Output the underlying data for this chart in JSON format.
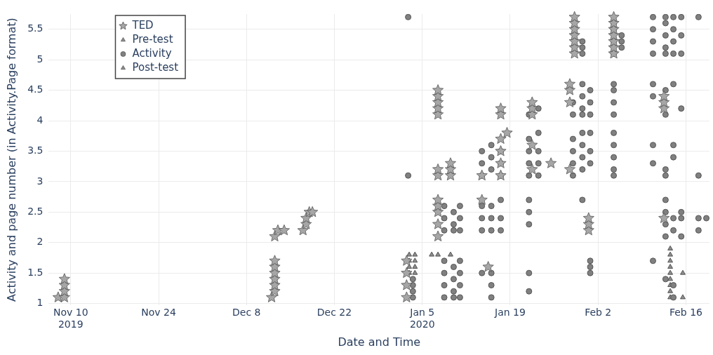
{
  "chart_data": {
    "type": "scatter",
    "xlabel": "Date and Time",
    "ylabel": "Activity and page number (in Activity.Page format)",
    "xlim": [
      "2019-11-06T12:00",
      "2020-02-19T18:00"
    ],
    "ylim": [
      0.97,
      5.75
    ],
    "xticks": [
      {
        "value": "2019-11-10",
        "label": "Nov 10\n2019"
      },
      {
        "value": "2019-11-24",
        "label": "Nov 24"
      },
      {
        "value": "2019-12-08",
        "label": "Dec 8"
      },
      {
        "value": "2019-12-22",
        "label": "Dec 22"
      },
      {
        "value": "2020-01-05",
        "label": "Jan 5\n2020"
      },
      {
        "value": "2020-01-19",
        "label": "Jan 19"
      },
      {
        "value": "2020-02-02",
        "label": "Feb 2"
      },
      {
        "value": "2020-02-16",
        "label": "Feb 16"
      }
    ],
    "yticks": [
      1,
      1.5,
      2,
      2.5,
      3,
      3.5,
      4,
      4.5,
      5,
      5.5
    ],
    "grid": true,
    "legend": "top left",
    "series": [
      {
        "name": "TED",
        "color": "#a6a6a6",
        "marker": "star",
        "x": [
          "2019-11-08T00:00",
          "2019-11-09T00:00",
          "2019-11-09T00:00",
          "2019-11-09T00:00",
          "2019-11-09T00:00",
          "2019-12-12T00:00",
          "2019-12-12T12:00",
          "2019-12-12T12:00",
          "2019-12-12T12:00",
          "2019-12-12T12:00",
          "2019-12-12T12:00",
          "2019-12-12T12:00",
          "2019-12-12T12:00",
          "2019-12-13T00:00",
          "2019-12-14T00:00",
          "2019-12-17T00:00",
          "2019-12-17T12:00",
          "2019-12-17T12:00",
          "2019-12-18T00:00",
          "2019-12-18T12:00",
          "2020-01-02T12:00",
          "2020-01-02T12:00",
          "2020-01-02T12:00",
          "2020-01-02T12:00",
          "2020-01-07T12:00",
          "2020-01-07T12:00",
          "2020-01-07T12:00",
          "2020-01-07T12:00",
          "2020-01-07T12:00",
          "2020-01-07T12:00",
          "2020-01-07T12:00",
          "2020-01-07T12:00",
          "2020-01-07T12:00",
          "2020-01-07T12:00",
          "2020-01-07T12:00",
          "2020-01-07T12:00",
          "2020-01-09T12:00",
          "2020-01-09T12:00",
          "2020-01-09T12:00",
          "2020-01-14T12:00",
          "2020-01-14T12:00",
          "2020-01-15T12:00",
          "2020-01-17T12:00",
          "2020-01-17T12:00",
          "2020-01-17T12:00",
          "2020-01-17T12:00",
          "2020-01-17T12:00",
          "2020-01-17T12:00",
          "2020-01-18T12:00",
          "2020-01-22T12:00",
          "2020-01-22T12:00",
          "2020-01-22T12:00",
          "2020-01-22T12:00",
          "2020-01-22T12:00",
          "2020-01-25T12:00",
          "2020-01-28T12:00",
          "2020-01-28T12:00",
          "2020-01-28T12:00",
          "2020-01-28T12:00",
          "2020-01-29T06:00",
          "2020-01-29T06:00",
          "2020-01-29T06:00",
          "2020-01-29T06:00",
          "2020-01-29T06:00",
          "2020-01-29T06:00",
          "2020-01-29T06:00",
          "2020-01-31T12:00",
          "2020-01-31T12:00",
          "2020-01-31T12:00",
          "2020-02-04T12:00",
          "2020-02-04T12:00",
          "2020-02-04T12:00",
          "2020-02-04T12:00",
          "2020-02-04T12:00",
          "2020-02-04T12:00",
          "2020-02-04T12:00",
          "2020-02-12T12:00",
          "2020-02-12T12:00",
          "2020-02-12T12:00",
          "2020-02-12T12:00"
        ],
        "values": [
          1.1,
          1.1,
          1.2,
          1.3,
          1.4,
          1.1,
          1.2,
          1.3,
          1.4,
          1.5,
          1.6,
          1.7,
          2.1,
          2.2,
          2.2,
          2.2,
          2.3,
          2.4,
          2.5,
          2.5,
          1.1,
          1.3,
          1.5,
          1.7,
          4.1,
          4.2,
          4.3,
          4.4,
          4.5,
          3.1,
          3.2,
          2.1,
          2.3,
          2.5,
          2.6,
          2.7,
          3.1,
          3.2,
          3.3,
          2.7,
          3.1,
          1.6,
          3.1,
          3.3,
          3.5,
          3.7,
          4.1,
          4.2,
          3.8,
          4.1,
          4.2,
          4.3,
          3.2,
          3.6,
          3.3,
          4.3,
          4.5,
          4.6,
          3.2,
          5.1,
          5.2,
          5.3,
          5.4,
          5.5,
          5.6,
          5.7,
          2.2,
          2.3,
          2.4,
          5.1,
          5.2,
          5.3,
          5.4,
          5.5,
          5.6,
          5.7,
          4.2,
          4.3,
          4.4,
          2.4
        ]
      },
      {
        "name": "Pre-test",
        "color": "#8c8c8c",
        "marker": "triangle",
        "x": [
          "2020-01-02T22:00",
          "2020-01-02T22:00",
          "2020-01-02T22:00",
          "2020-01-02T22:00",
          "2020-01-03T20:00",
          "2020-01-03T20:00",
          "2020-01-03T20:00",
          "2020-01-03T20:00",
          "2020-01-06T12:00",
          "2020-01-07T12:00",
          "2020-01-09T12:00"
        ],
        "values": [
          1.5,
          1.6,
          1.7,
          1.8,
          1.5,
          1.6,
          1.7,
          1.8,
          1.8,
          1.8,
          1.8
        ]
      },
      {
        "name": "Activity",
        "color": "#808080",
        "marker": "circle",
        "x": [
          "2020-01-02T18:00",
          "2020-01-02T18:00",
          "2020-01-03T12:00",
          "2020-01-03T12:00",
          "2020-01-03T12:00",
          "2020-01-03T12:00",
          "2020-01-08T12:00",
          "2020-01-08T12:00",
          "2020-01-08T12:00",
          "2020-01-08T12:00",
          "2020-01-08T12:00",
          "2020-01-08T12:00",
          "2020-01-08T12:00",
          "2020-01-10T00:00",
          "2020-01-10T00:00",
          "2020-01-10T00:00",
          "2020-01-10T00:00",
          "2020-01-10T00:00",
          "2020-01-10T00:00",
          "2020-01-10T00:00",
          "2020-01-11T00:00",
          "2020-01-11T00:00",
          "2020-01-11T00:00",
          "2020-01-11T00:00",
          "2020-01-11T00:00",
          "2020-01-11T00:00",
          "2020-01-11T00:00",
          "2020-01-14T12:00",
          "2020-01-14T12:00",
          "2020-01-14T12:00",
          "2020-01-14T12:00",
          "2020-01-14T12:00",
          "2020-01-14T12:00",
          "2020-01-14T12:00",
          "2020-01-16T00:00",
          "2020-01-16T00:00",
          "2020-01-16T00:00",
          "2020-01-16T00:00",
          "2020-01-16T00:00",
          "2020-01-16T00:00",
          "2020-01-16T00:00",
          "2020-01-16T00:00",
          "2020-01-16T00:00",
          "2020-01-17T12:00",
          "2020-01-17T12:00",
          "2020-01-17T12:00",
          "2020-01-17T12:00",
          "2020-01-17T12:00",
          "2020-01-17T12:00",
          "2020-01-22T00:00",
          "2020-01-22T00:00",
          "2020-01-22T00:00",
          "2020-01-22T00:00",
          "2020-01-22T00:00",
          "2020-01-22T00:00",
          "2020-01-22T00:00",
          "2020-01-22T00:00",
          "2020-01-22T00:00",
          "2020-01-22T00:00",
          "2020-01-23T12:00",
          "2020-01-23T12:00",
          "2020-01-23T12:00",
          "2020-01-23T12:00",
          "2020-01-23T12:00",
          "2020-01-29T00:00",
          "2020-01-29T00:00",
          "2020-01-29T00:00",
          "2020-01-29T00:00",
          "2020-01-29T00:00",
          "2020-01-29T00:00",
          "2020-01-30T12:00",
          "2020-01-30T12:00",
          "2020-01-30T12:00",
          "2020-01-30T12:00",
          "2020-01-30T12:00",
          "2020-01-30T12:00",
          "2020-01-30T12:00",
          "2020-01-30T12:00",
          "2020-01-30T12:00",
          "2020-01-30T12:00",
          "2020-01-30T12:00",
          "2020-01-30T12:00",
          "2020-01-31T18:00",
          "2020-01-31T18:00",
          "2020-01-31T18:00",
          "2020-01-31T18:00",
          "2020-01-31T18:00",
          "2020-01-31T18:00",
          "2020-01-31T18:00",
          "2020-01-31T18:00",
          "2020-01-31T18:00",
          "2020-02-04T12:00",
          "2020-02-04T12:00",
          "2020-02-04T12:00",
          "2020-02-04T12:00",
          "2020-02-04T12:00",
          "2020-02-04T12:00",
          "2020-02-04T12:00",
          "2020-02-04T12:00",
          "2020-02-04T12:00",
          "2020-02-04T12:00",
          "2020-02-04T12:00",
          "2020-02-04T12:00",
          "2020-02-04T12:00",
          "2020-02-05T18:00",
          "2020-02-05T18:00",
          "2020-02-05T18:00",
          "2020-02-10T18:00",
          "2020-02-10T18:00",
          "2020-02-10T18:00",
          "2020-02-10T18:00",
          "2020-02-10T18:00",
          "2020-02-10T18:00",
          "2020-02-10T18:00",
          "2020-02-10T18:00",
          "2020-02-10T18:00",
          "2020-02-12T18:00",
          "2020-02-12T18:00",
          "2020-02-12T18:00",
          "2020-02-12T18:00",
          "2020-02-12T18:00",
          "2020-02-12T18:00",
          "2020-02-12T18:00",
          "2020-02-12T18:00",
          "2020-02-12T18:00",
          "2020-02-12T18:00",
          "2020-02-12T18:00",
          "2020-02-12T18:00",
          "2020-02-12T18:00",
          "2020-02-12T18:00",
          "2020-02-14T00:00",
          "2020-02-14T00:00",
          "2020-02-14T00:00",
          "2020-02-14T00:00",
          "2020-02-14T00:00",
          "2020-02-14T00:00",
          "2020-02-14T00:00",
          "2020-02-14T00:00",
          "2020-02-14T00:00",
          "2020-02-14T00:00",
          "2020-02-14T00:00",
          "2020-02-15T06:00",
          "2020-02-15T06:00",
          "2020-02-15T06:00",
          "2020-02-15T06:00",
          "2020-02-15T06:00",
          "2020-02-15T06:00",
          "2020-02-15T06:00",
          "2020-02-18T00:00",
          "2020-02-18T00:00",
          "2020-02-18T00:00",
          "2020-02-18T00:00",
          "2020-02-19T06:00"
        ],
        "values": [
          5.7,
          3.1,
          1.1,
          1.2,
          1.3,
          1.4,
          1.1,
          1.3,
          1.5,
          1.7,
          2.2,
          2.4,
          2.6,
          1.1,
          1.2,
          1.4,
          1.6,
          2.2,
          2.3,
          2.5,
          1.1,
          1.3,
          1.5,
          1.7,
          2.2,
          2.4,
          2.6,
          2.2,
          2.4,
          2.6,
          3.1,
          3.3,
          3.5,
          1.5,
          1.1,
          1.3,
          1.5,
          2.2,
          2.4,
          2.6,
          3.2,
          3.4,
          3.6,
          2.2,
          2.4,
          2.7,
          3.1,
          3.3,
          3.5,
          1.2,
          1.5,
          2.3,
          2.5,
          2.7,
          3.1,
          3.3,
          3.5,
          3.7,
          4.1,
          3.1,
          3.3,
          3.5,
          3.8,
          4.2,
          3.1,
          3.3,
          3.5,
          3.7,
          4.1,
          4.3,
          3.2,
          3.4,
          3.6,
          3.8,
          4.1,
          4.2,
          4.4,
          4.6,
          5.1,
          5.2,
          5.3,
          2.7,
          3.3,
          3.5,
          3.8,
          4.1,
          4.3,
          4.5,
          1.5,
          1.6,
          1.7,
          3.1,
          3.2,
          3.4,
          3.6,
          3.8,
          4.1,
          4.3,
          4.5,
          4.6,
          5.1,
          5.3,
          5.5,
          5.6,
          5.2,
          5.3,
          5.4,
          5.1,
          5.3,
          5.5,
          5.7,
          4.4,
          4.6,
          3.3,
          3.6,
          1.7,
          5.1,
          5.2,
          5.4,
          5.6,
          5.7,
          4.1,
          4.5,
          3.1,
          3.2,
          2.1,
          2.3,
          2.5,
          2.7,
          1.4,
          5.1,
          5.3,
          5.5,
          5.7,
          4.6,
          3.4,
          3.6,
          2.2,
          2.4,
          1.1,
          1.3,
          5.1,
          5.4,
          5.7,
          4.2,
          2.1,
          2.4,
          2.5,
          5.7,
          3.1,
          2.2,
          2.4,
          2.4
        ]
      },
      {
        "name": "Post-test",
        "color": "#8c8c8c",
        "marker": "triangle",
        "x": [
          "2020-02-13T12:00",
          "2020-02-13T12:00",
          "2020-02-13T12:00",
          "2020-02-13T12:00",
          "2020-02-13T12:00",
          "2020-02-13T12:00",
          "2020-02-13T12:00",
          "2020-02-13T12:00",
          "2020-02-13T12:00",
          "2020-02-15T12:00",
          "2020-02-15T12:00"
        ],
        "values": [
          1.1,
          1.2,
          1.3,
          1.4,
          1.5,
          1.6,
          1.7,
          1.8,
          1.9,
          1.5,
          1.1
        ]
      }
    ]
  }
}
